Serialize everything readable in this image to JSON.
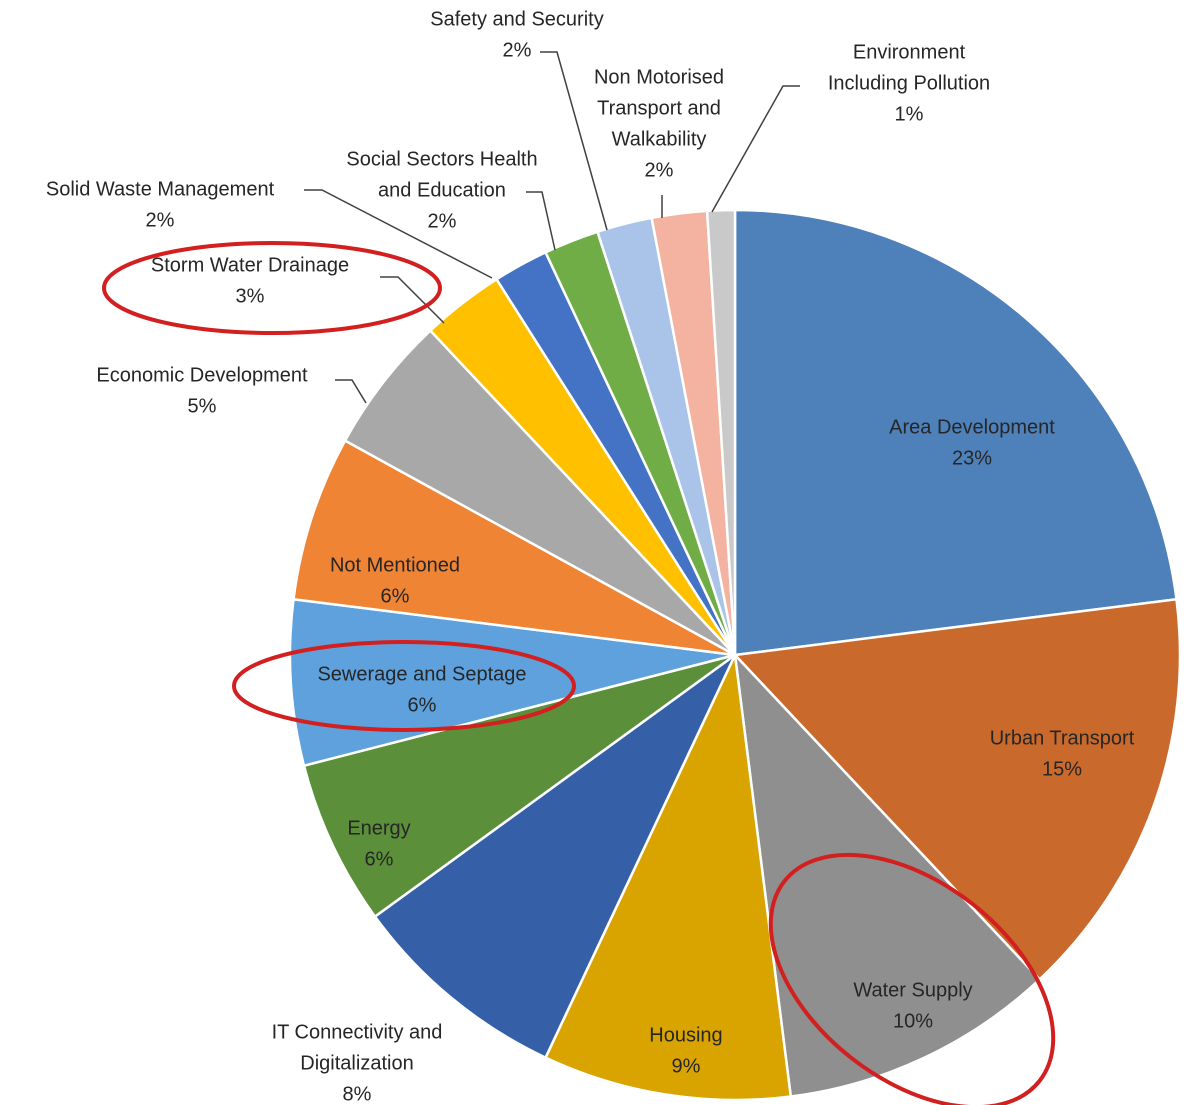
{
  "chart_data": {
    "type": "pie",
    "title": "",
    "colors": {
      "highlight_ring": "#d21f1f"
    },
    "slices": [
      {
        "label_lines": [
          "Area Development"
        ],
        "pct_label": "23%",
        "value": 23,
        "color": "#4e80b9",
        "highlighted": false
      },
      {
        "label_lines": [
          "Urban Transport"
        ],
        "pct_label": "15%",
        "value": 15,
        "color": "#c9692c",
        "highlighted": false
      },
      {
        "label_lines": [
          "Water Supply"
        ],
        "pct_label": "10%",
        "value": 10,
        "color": "#8f8f8f",
        "highlighted": true
      },
      {
        "label_lines": [
          "Housing"
        ],
        "pct_label": "9%",
        "value": 9,
        "color": "#d9a400",
        "highlighted": false
      },
      {
        "label_lines": [
          "IT Connectivity and",
          "Digitalization"
        ],
        "pct_label": "8%",
        "value": 8,
        "color": "#3560a8",
        "highlighted": false
      },
      {
        "label_lines": [
          "Energy"
        ],
        "pct_label": "6%",
        "value": 6,
        "color": "#5b8f3a",
        "highlighted": false
      },
      {
        "label_lines": [
          "Sewerage  and Septage"
        ],
        "pct_label": "6%",
        "value": 6,
        "color": "#5fa1dd",
        "highlighted": true
      },
      {
        "label_lines": [
          "Not Mentioned"
        ],
        "pct_label": "6%",
        "value": 6,
        "color": "#ef8434",
        "highlighted": false
      },
      {
        "label_lines": [
          "Economic Development"
        ],
        "pct_label": "5%",
        "value": 5,
        "color": "#a8a8a8",
        "highlighted": false
      },
      {
        "label_lines": [
          "Storm  Water Drainage"
        ],
        "pct_label": "3%",
        "value": 3,
        "color": "#ffc000",
        "highlighted": true
      },
      {
        "label_lines": [
          "Solid Waste Management"
        ],
        "pct_label": "2%",
        "value": 2,
        "color": "#4472c4",
        "highlighted": false
      },
      {
        "label_lines": [
          "Social Sectors Health",
          "and Education"
        ],
        "pct_label": "2%",
        "value": 2,
        "color": "#70ad47",
        "highlighted": false
      },
      {
        "label_lines": [
          "Safety and Security"
        ],
        "pct_label": "2%",
        "value": 2,
        "color": "#a9c4e8",
        "highlighted": false
      },
      {
        "label_lines": [
          "Non Motorised",
          "Transport and",
          "Walkability"
        ],
        "pct_label": "2%",
        "value": 2,
        "color": "#f4b2a0",
        "highlighted": false
      },
      {
        "label_lines": [
          "Environment",
          "Including Pollution"
        ],
        "pct_label": "1%",
        "value": 1,
        "color": "#c9c9c9",
        "highlighted": false
      }
    ]
  }
}
